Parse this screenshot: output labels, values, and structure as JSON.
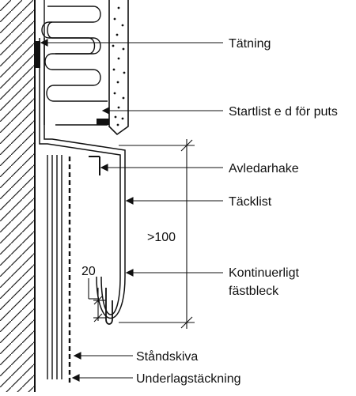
{
  "labels": {
    "tatning": "Tätning",
    "startlist": "Startlist e d för puts",
    "avledarhake": "Avledarhake",
    "tacklist": "Täcklist",
    "kontinuerligt_1": "Kontinuerligt",
    "kontinuerligt_2": "fästbleck",
    "standskiva": "Ståndskiva",
    "underlag": "Underlagstäckning"
  },
  "dimensions": {
    "height": ">100",
    "gap": "20"
  }
}
